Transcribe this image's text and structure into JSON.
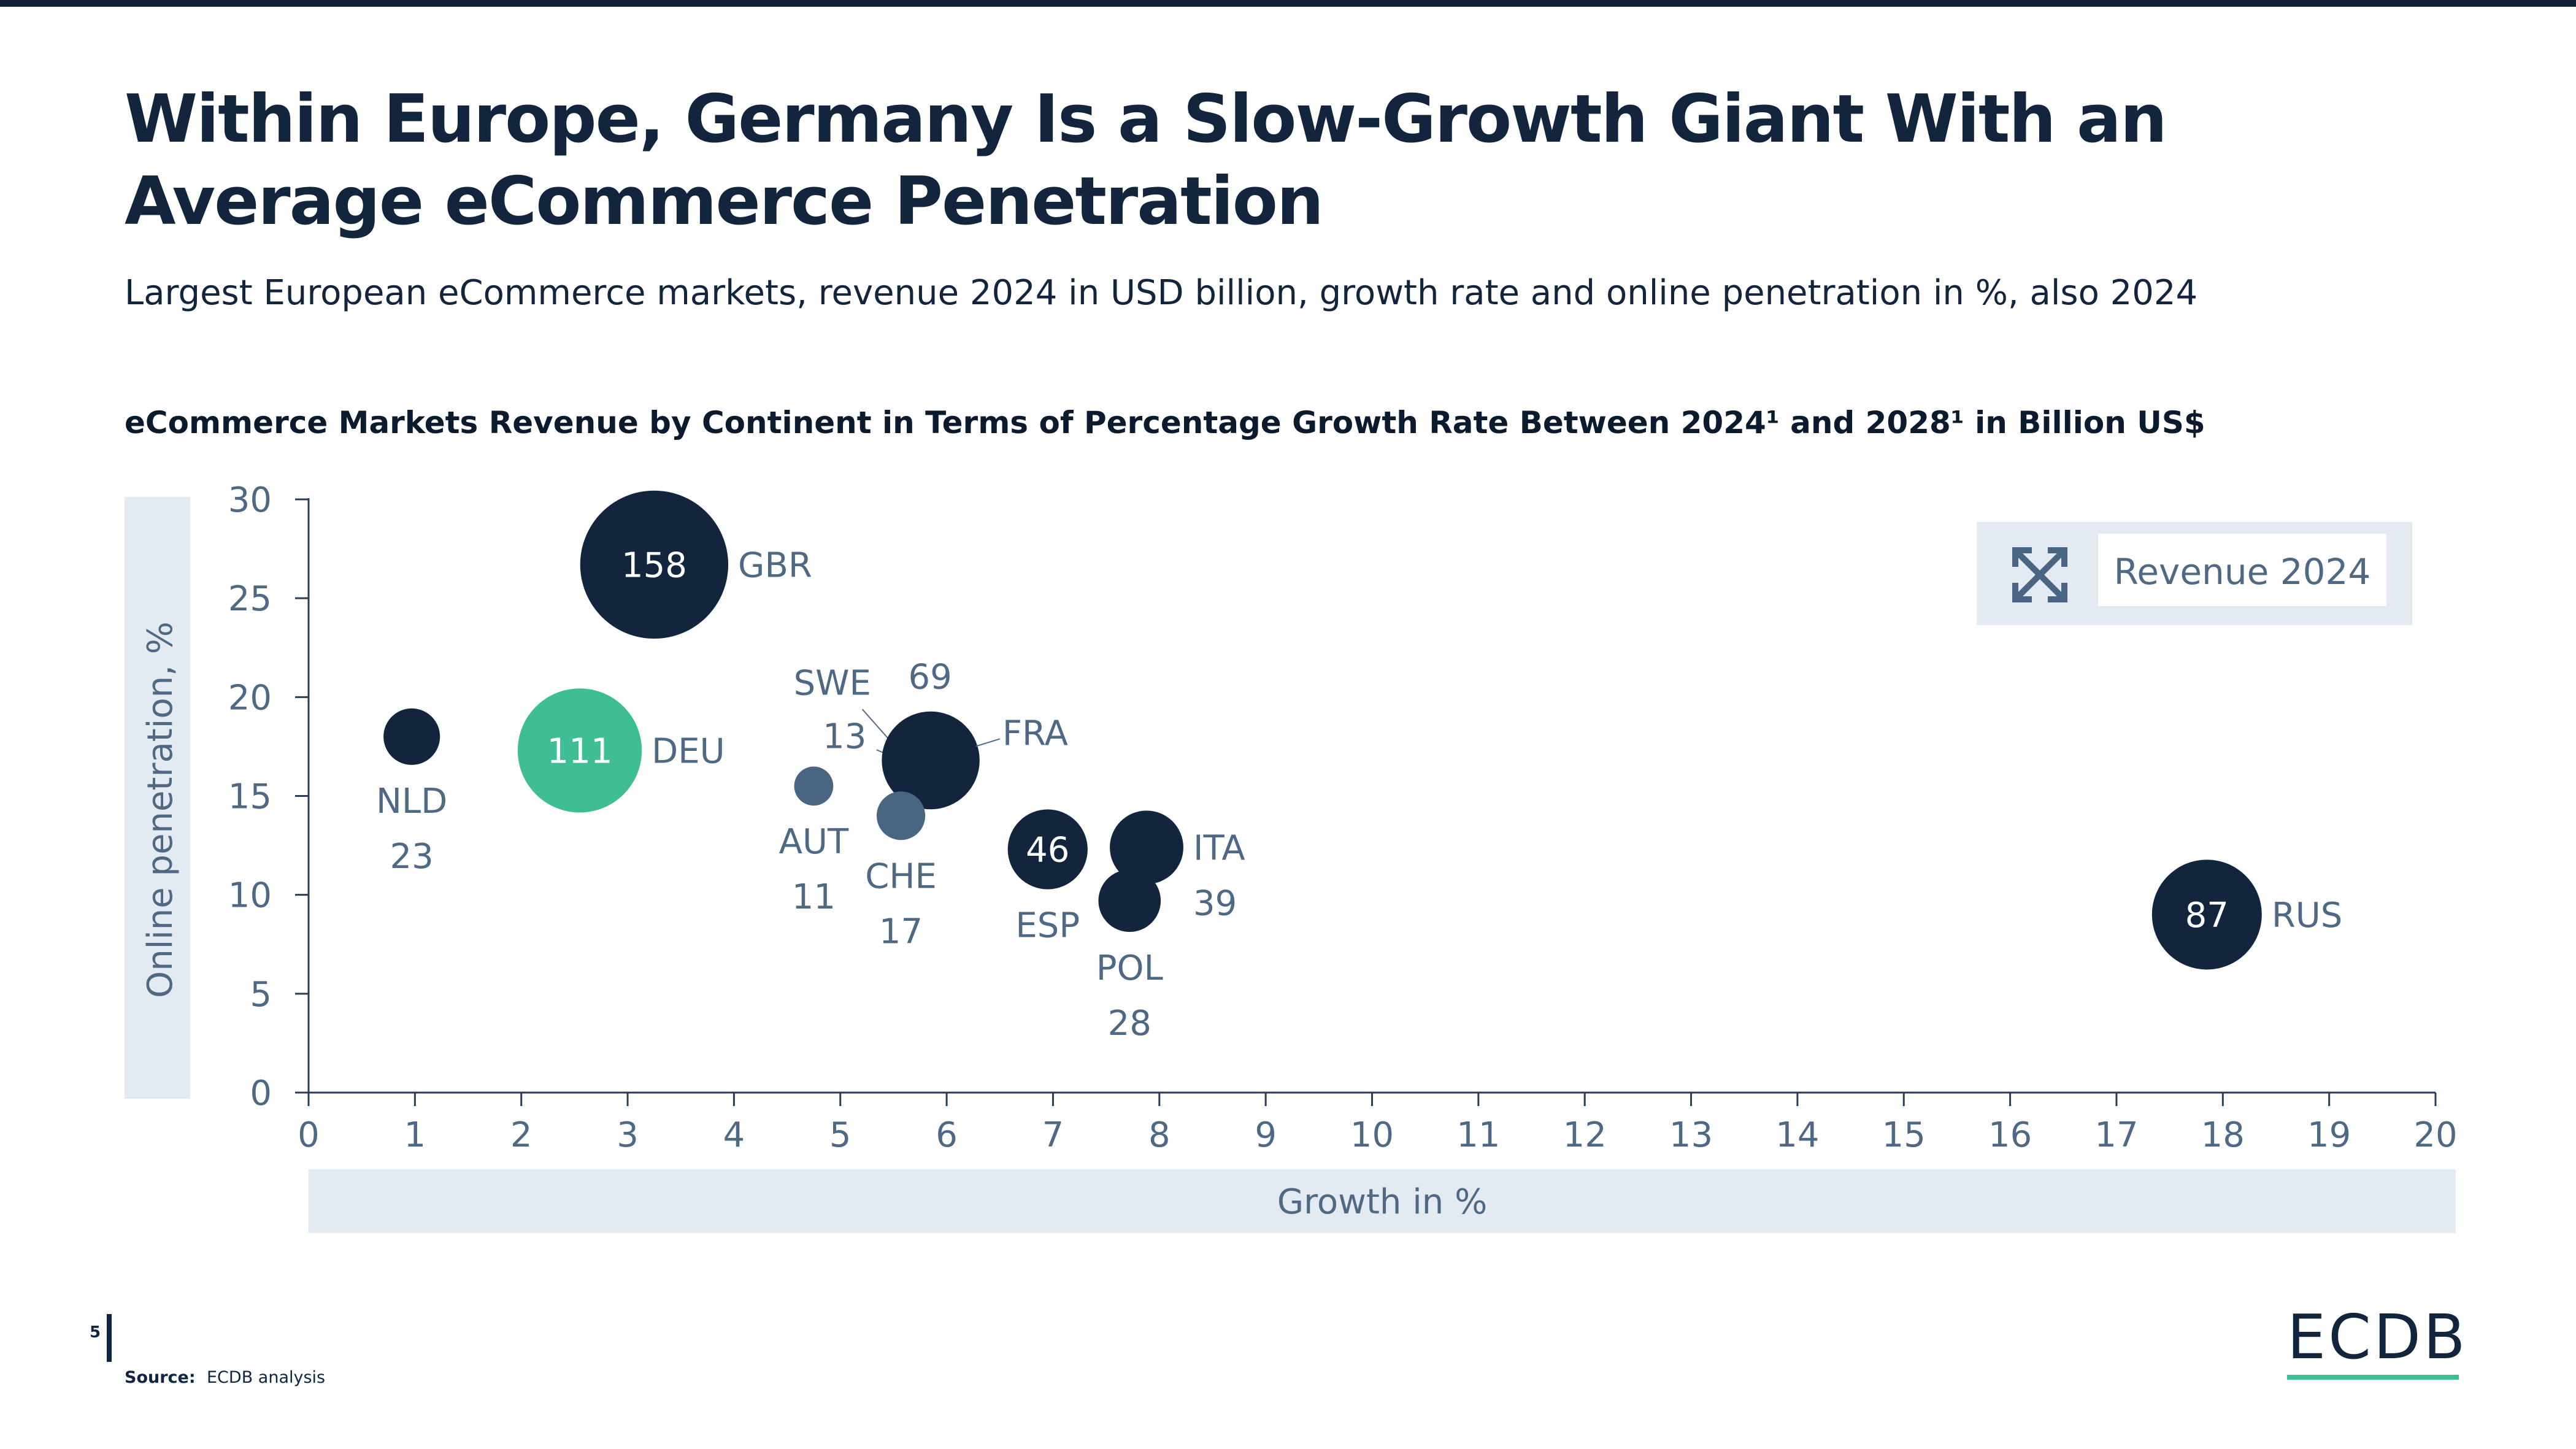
{
  "title": "Within Europe, Germany Is a Slow-Growth Giant With an Average eCommerce Penetration",
  "subtitle": "Largest European eCommerce markets, revenue 2024 in USD billion, growth rate and online penetration in %, also 2024",
  "chart_title": "eCommerce Markets Revenue by Continent in Terms of Percentage Growth Rate Between 2024¹ and 2028¹ in Billion US$",
  "page_number": "5",
  "source_label": "Source:",
  "source_text": "ECDB analysis",
  "logo_text": "ECDB",
  "colors": {
    "navy": "#13253d",
    "highlight": "#3fbe96",
    "slate": "#4a6582",
    "axis_panel": "#e4eaf1",
    "label_text": "#4f6985"
  },
  "chart_data": {
    "type": "scatter",
    "subtype": "bubble",
    "xlabel": "Growth in %",
    "ylabel": "Online penetration, %",
    "xlim": [
      0,
      20
    ],
    "ylim": [
      0,
      30
    ],
    "x_ticks": [
      0,
      1,
      2,
      3,
      4,
      5,
      6,
      7,
      8,
      9,
      10,
      11,
      12,
      13,
      14,
      15,
      16,
      17,
      18,
      19,
      20
    ],
    "y_ticks": [
      0,
      5,
      10,
      15,
      20,
      25,
      30
    ],
    "grid": false,
    "legend": {
      "label": "Revenue 2024",
      "icon": "expand-arrows-icon",
      "position": "top-right"
    },
    "points": [
      {
        "country": "GBR",
        "revenue": "158",
        "x": 3.25,
        "y": 26.7,
        "color": "navy",
        "value_inside": true,
        "name_pos": "right"
      },
      {
        "country": "DEU",
        "revenue": "111",
        "x": 2.55,
        "y": 17.3,
        "color": "highlight",
        "value_inside": true,
        "name_pos": "right"
      },
      {
        "country": "NLD",
        "revenue": "23",
        "x": 0.97,
        "y": 18.0,
        "color": "navy",
        "value_inside": false,
        "name_pos": "below"
      },
      {
        "country": "SWE",
        "revenue": "13",
        "x": 5.6,
        "y": 16.9,
        "color": "navy",
        "value_inside": false,
        "name_pos": "leader"
      },
      {
        "country": "FRA",
        "revenue": "69",
        "x": 5.85,
        "y": 16.8,
        "color": "navy",
        "value_inside": false,
        "name_pos": "leader-right"
      },
      {
        "country": "AUT",
        "revenue": "11",
        "x": 4.75,
        "y": 15.5,
        "color": "slate",
        "value_inside": false,
        "name_pos": "below"
      },
      {
        "country": "CHE",
        "revenue": "17",
        "x": 5.57,
        "y": 14.0,
        "color": "slate",
        "value_inside": false,
        "name_pos": "below"
      },
      {
        "country": "ESP",
        "revenue": "46",
        "x": 6.95,
        "y": 12.3,
        "color": "navy",
        "value_inside": true,
        "name_pos": "below"
      },
      {
        "country": "ITA",
        "revenue": "39",
        "x": 7.88,
        "y": 12.4,
        "color": "navy",
        "value_inside": false,
        "name_pos": "right"
      },
      {
        "country": "POL",
        "revenue": "28",
        "x": 7.72,
        "y": 9.7,
        "color": "navy",
        "value_inside": false,
        "name_pos": "below"
      },
      {
        "country": "RUS",
        "revenue": "87",
        "x": 17.85,
        "y": 9.0,
        "color": "navy",
        "value_inside": true,
        "name_pos": "right"
      }
    ]
  }
}
